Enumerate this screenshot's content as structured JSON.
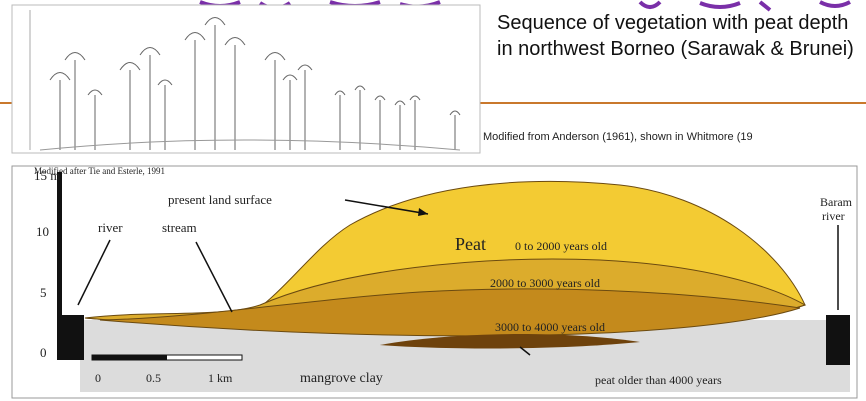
{
  "caption": "Sequence of vegetation with peat depth in northwest Borneo (Sarawak & Brunei)",
  "source": "Modified from Anderson (1961), shown in Whitmore (19",
  "diagram": {
    "credit": "Modified after Tie and Esterle, 1991",
    "axis_labels": [
      "15 m",
      "10",
      "5",
      "0"
    ],
    "surface": "present land surface",
    "river": "river",
    "stream": "stream",
    "peat": "Peat",
    "layer_1": "0 to 2000 years old",
    "layer_2": "2000 to 3000 years old",
    "layer_3": "3000 to 4000 years old",
    "baram": "Baram river",
    "scale_labels": [
      "0",
      "0.5",
      "1 km"
    ],
    "clay": "mangrove clay",
    "oldest": "peat older than 4000 years"
  }
}
